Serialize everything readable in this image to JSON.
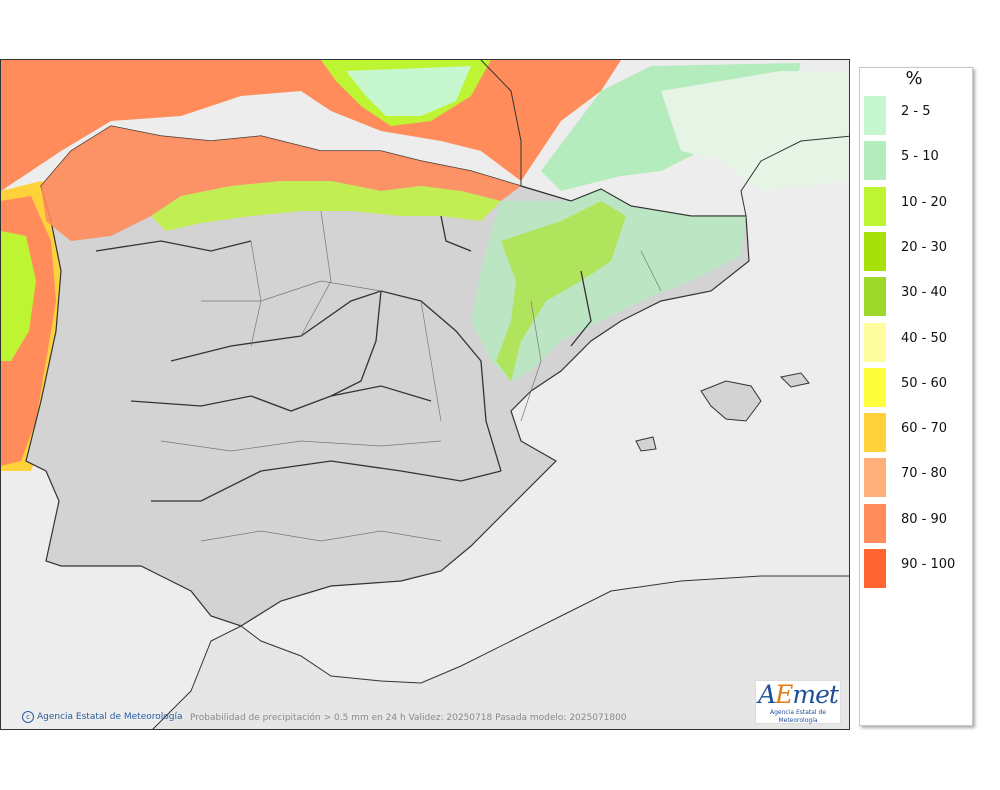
{
  "map": {
    "caption": "Probabilidad de precipitación > 0.5 mm en 24 h Validez: 20250718 Pasada modelo: 2025071800",
    "credit": "Agencia Estatal de Meteorología",
    "logo_text": "AEmet",
    "logo_sub": "Agencia Estatal de Meteorología",
    "colors": {
      "sea": "#ededed",
      "land": "#d3d3d3",
      "border": "#333333"
    }
  },
  "legend": {
    "unit": "%",
    "items": [
      {
        "label": "2 - 5",
        "color": "#c6f7cf"
      },
      {
        "label": "5 - 10",
        "color": "#b4ecbe"
      },
      {
        "label": "10 - 20",
        "color": "#bdf532"
      },
      {
        "label": "20 - 30",
        "color": "#a7e10a"
      },
      {
        "label": "30 - 40",
        "color": "#9dd92a"
      },
      {
        "label": "40 - 50",
        "color": "#fefea0"
      },
      {
        "label": "50 - 60",
        "color": "#fefe3c"
      },
      {
        "label": "60 - 70",
        "color": "#ffd23c"
      },
      {
        "label": "70 - 80",
        "color": "#ffb07a"
      },
      {
        "label": "80 - 90",
        "color": "#ff8c5a"
      },
      {
        "label": "90 - 100",
        "color": "#ff6432"
      }
    ]
  }
}
